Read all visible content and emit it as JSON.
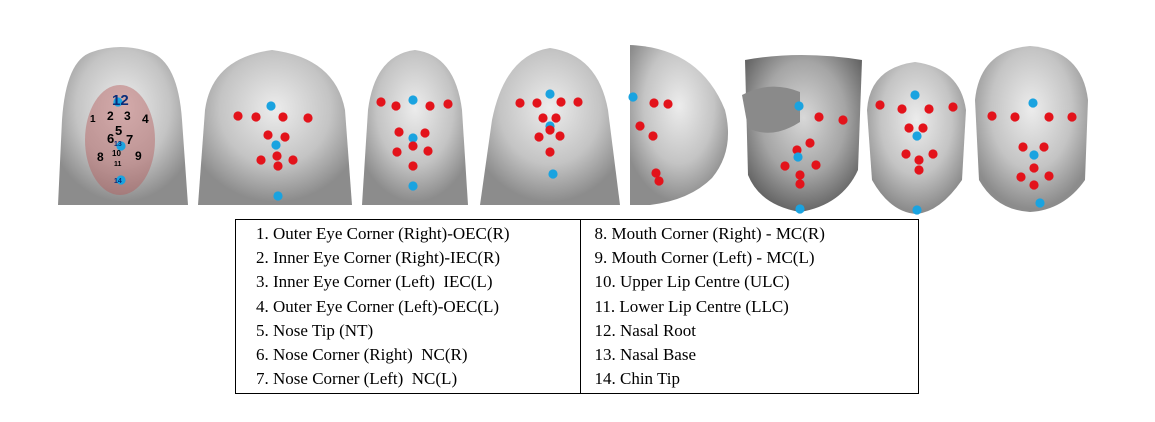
{
  "legend": {
    "left": [
      "1. Outer Eye Corner (Right)-OEC(R)",
      "2. Inner Eye Corner (Right)-IEC(R)",
      "3. Inner Eye Corner (Left)  IEC(L)",
      "4. Outer Eye Corner (Left)-OEC(L)",
      "5. Nose Tip (NT)",
      "6. Nose Corner (Right)  NC(R)",
      "7. Nose Corner (Left)  NC(L)"
    ],
    "right": [
      "8. Mouth Corner (Right) - MC(R)",
      "9. Mouth Corner (Left) - MC(L)",
      "10. Upper Lip Centre (ULC)",
      "11. Lower Lip Centre (LLC)",
      "12. Nasal Root",
      "13. Nasal Base",
      "14. Chin Tip"
    ]
  },
  "first_face_numbers": [
    "12",
    "1",
    "2",
    "3",
    "4",
    "5",
    "6",
    "7",
    "13",
    "10",
    "8",
    "9",
    "11",
    "14"
  ],
  "colors": {
    "red_landmark": "#e3131b",
    "blue_landmark": "#1aa3e0"
  }
}
